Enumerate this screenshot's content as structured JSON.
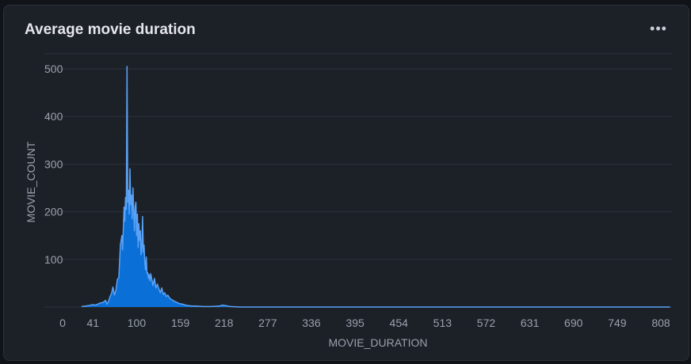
{
  "card": {
    "title": "Average movie duration",
    "menu_icon": "more-horizontal-icon",
    "menu_glyph": "•••"
  },
  "colors": {
    "background": "#1c2027",
    "grid": "#2e343d",
    "area_fill": "#0a6fd6",
    "line": "#5aa2f5",
    "text": "#9aa1ac",
    "title": "#e4e6eb"
  },
  "chart_data": {
    "type": "area",
    "title": "Average movie duration",
    "xlabel": "MOVIE_DURATION",
    "ylabel": "MOVIE_COUNT",
    "xlim": [
      0,
      820
    ],
    "ylim": [
      0,
      520
    ],
    "x_ticks": [
      0,
      41,
      100,
      159,
      218,
      277,
      336,
      395,
      454,
      513,
      572,
      631,
      690,
      749,
      808
    ],
    "y_ticks": [
      100,
      200,
      300,
      400,
      500
    ],
    "grid": "horizontal",
    "series": [
      {
        "x": [
          26,
          35,
          41,
          45,
          50,
          55,
          58,
          60,
          62,
          64,
          66,
          68,
          70,
          72,
          74,
          76,
          78,
          80,
          81,
          82,
          83,
          84,
          85,
          86,
          87,
          88,
          89,
          90,
          91,
          92,
          93,
          94,
          95,
          96,
          97,
          98,
          99,
          100,
          101,
          102,
          103,
          104,
          105,
          106,
          107,
          108,
          109,
          110,
          111,
          112,
          113,
          114,
          115,
          116,
          117,
          118,
          119,
          120,
          122,
          124,
          126,
          128,
          130,
          132,
          134,
          136,
          138,
          140,
          142,
          145,
          148,
          151,
          154,
          158,
          162,
          166,
          170,
          175,
          180,
          190,
          200,
          212,
          216,
          220,
          226,
          240,
          280,
          360,
          480,
          600,
          720,
          808,
          820
        ],
        "values": [
          1,
          3,
          5,
          4,
          8,
          10,
          14,
          6,
          12,
          22,
          28,
          42,
          25,
          35,
          58,
          62,
          130,
          150,
          120,
          165,
          210,
          180,
          230,
          205,
          505,
          220,
          245,
          195,
          290,
          215,
          235,
          185,
          250,
          205,
          160,
          210,
          220,
          150,
          195,
          125,
          175,
          140,
          160,
          110,
          125,
          190,
          115,
          130,
          95,
          78,
          105,
          70,
          72,
          60,
          68,
          55,
          70,
          62,
          45,
          60,
          40,
          48,
          38,
          30,
          40,
          26,
          30,
          22,
          25,
          18,
          15,
          12,
          10,
          7,
          6,
          4,
          3,
          2,
          2,
          1,
          1,
          2,
          4,
          3,
          1,
          0,
          0,
          0,
          0,
          0,
          0,
          0,
          0
        ]
      }
    ]
  }
}
